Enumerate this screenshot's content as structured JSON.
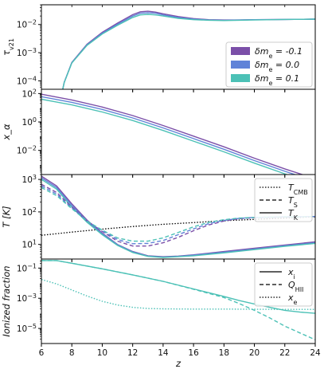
{
  "colors": {
    "purple": "#7b4fa8",
    "blue": "#6083d8",
    "teal": "#4cc1b6",
    "black": "#000000"
  },
  "chart_data": [
    {
      "type": "line",
      "ylabel": "τ_v21",
      "y_scale": "log",
      "xlim": [
        6,
        24
      ],
      "ylim_log10": [
        -4.3,
        -1.3
      ],
      "yticks": [
        {
          "base": "10",
          "exp": "−4",
          "log": -4
        },
        {
          "base": "10",
          "exp": "−3",
          "log": -3
        },
        {
          "base": "10",
          "exp": "−2",
          "log": -2
        }
      ],
      "legend": {
        "placement": "center-right",
        "entries": [
          {
            "label": "δm_e = -0.1",
            "color_key": "purple"
          },
          {
            "label": "δm_e = 0.0",
            "color_key": "blue"
          },
          {
            "label": "δm_e = 0.1",
            "color_key": "teal"
          }
        ]
      },
      "series": [
        {
          "name": "δm_e = -0.1",
          "color_key": "purple",
          "dash": "",
          "x": [
            7.4,
            7.5,
            8,
            9,
            10,
            11,
            12,
            12.5,
            13,
            13.5,
            14,
            15,
            16,
            17,
            18,
            19,
            20,
            22,
            24
          ],
          "log_y": [
            -4.3,
            -4.05,
            -3.35,
            -2.7,
            -2.28,
            -1.95,
            -1.65,
            -1.55,
            -1.53,
            -1.56,
            -1.62,
            -1.72,
            -1.79,
            -1.83,
            -1.84,
            -1.84,
            -1.83,
            -1.82,
            -1.81
          ]
        },
        {
          "name": "δm_e = 0.0",
          "color_key": "blue",
          "dash": "",
          "x": [
            7.4,
            7.5,
            8,
            9,
            10,
            11,
            12,
            12.5,
            13,
            13.5,
            14,
            15,
            16,
            17,
            18,
            19,
            20,
            22,
            24
          ],
          "log_y": [
            -4.3,
            -4.05,
            -3.36,
            -2.72,
            -2.31,
            -1.99,
            -1.7,
            -1.6,
            -1.58,
            -1.6,
            -1.66,
            -1.75,
            -1.81,
            -1.84,
            -1.85,
            -1.84,
            -1.83,
            -1.82,
            -1.81
          ]
        },
        {
          "name": "δm_e = 0.1",
          "color_key": "teal",
          "dash": "",
          "x": [
            7.4,
            7.5,
            8,
            9,
            10,
            11,
            12,
            12.5,
            13,
            13.5,
            14,
            15,
            16,
            17,
            18,
            19,
            20,
            22,
            24
          ],
          "log_y": [
            -4.3,
            -4.06,
            -3.37,
            -2.74,
            -2.34,
            -2.03,
            -1.75,
            -1.66,
            -1.64,
            -1.66,
            -1.7,
            -1.78,
            -1.83,
            -1.85,
            -1.86,
            -1.85,
            -1.84,
            -1.82,
            -1.81
          ]
        }
      ]
    },
    {
      "type": "line",
      "ylabel": "x_α",
      "y_scale": "log",
      "xlim": [
        6,
        24
      ],
      "ylim_log10": [
        -3.7,
        2.3
      ],
      "yticks": [
        {
          "base": "10",
          "exp": "−2",
          "log": -2
        },
        {
          "base": "10",
          "exp": "0",
          "log": 0
        },
        {
          "base": "10",
          "exp": "2",
          "log": 2
        }
      ],
      "series": [
        {
          "name": "δm_e = -0.1",
          "color_key": "purple",
          "dash": "",
          "x": [
            6,
            8,
            10,
            12,
            14,
            16,
            18,
            20,
            22,
            24
          ],
          "log_y": [
            1.95,
            1.55,
            1.05,
            0.45,
            -0.25,
            -1.0,
            -1.75,
            -2.55,
            -3.3,
            -4.0
          ]
        },
        {
          "name": "δm_e = 0.0",
          "color_key": "blue",
          "dash": "",
          "x": [
            6,
            8,
            10,
            12,
            14,
            16,
            18,
            20,
            22,
            24
          ],
          "log_y": [
            1.78,
            1.38,
            0.88,
            0.28,
            -0.42,
            -1.17,
            -1.92,
            -2.72,
            -3.47,
            -4.17
          ]
        },
        {
          "name": "δm_e = 0.1",
          "color_key": "teal",
          "dash": "",
          "x": [
            6,
            8,
            10,
            12,
            14,
            16,
            18,
            20,
            22,
            24
          ],
          "log_y": [
            1.6,
            1.2,
            0.7,
            0.1,
            -0.6,
            -1.35,
            -2.1,
            -2.9,
            -3.65,
            -4.35
          ]
        }
      ]
    },
    {
      "type": "line",
      "ylabel": "T [K]",
      "y_scale": "log",
      "xlim": [
        6,
        24
      ],
      "ylim_log10": [
        0.55,
        3.15
      ],
      "yticks": [
        {
          "base": "10",
          "exp": "1",
          "log": 1
        },
        {
          "base": "10",
          "exp": "2",
          "log": 2
        },
        {
          "base": "10",
          "exp": "3",
          "log": 3
        }
      ],
      "legend": {
        "placement": "top-right",
        "entries": [
          {
            "label": "T_CMB",
            "dash": "1.5 2"
          },
          {
            "label": "T_S",
            "dash": "5 3"
          },
          {
            "label": "T_K",
            "dash": ""
          }
        ]
      },
      "series": [
        {
          "name": "T_CMB",
          "color_key": "black",
          "dash": "1.5 2",
          "x": [
            6,
            8,
            10,
            12,
            14,
            16,
            18,
            20,
            22,
            24
          ],
          "log_y": [
            1.28,
            1.38,
            1.47,
            1.55,
            1.62,
            1.67,
            1.73,
            1.77,
            1.81,
            1.85
          ]
        },
        {
          "name": "T_K (δm_e = -0.1)",
          "color_key": "purple",
          "dash": "",
          "x": [
            6,
            7,
            8,
            9,
            10,
            11,
            12,
            13,
            14,
            15,
            16,
            18,
            20,
            22,
            24
          ],
          "log_y": [
            3.1,
            2.8,
            2.25,
            1.75,
            1.35,
            1.0,
            0.78,
            0.65,
            0.62,
            0.64,
            0.68,
            0.78,
            0.88,
            0.98,
            1.08
          ]
        },
        {
          "name": "T_K (δm_e = 0.0)",
          "color_key": "blue",
          "dash": "",
          "x": [
            6,
            7,
            8,
            9,
            10,
            11,
            12,
            13,
            14,
            15,
            16,
            18,
            20,
            22,
            24
          ],
          "log_y": [
            3.05,
            2.75,
            2.2,
            1.72,
            1.33,
            0.99,
            0.77,
            0.64,
            0.61,
            0.63,
            0.67,
            0.76,
            0.86,
            0.96,
            1.05
          ]
        },
        {
          "name": "T_K (δm_e = 0.1)",
          "color_key": "teal",
          "dash": "",
          "x": [
            6,
            7,
            8,
            9,
            10,
            11,
            12,
            13,
            14,
            15,
            16,
            18,
            20,
            22,
            24
          ],
          "log_y": [
            3.0,
            2.7,
            2.15,
            1.68,
            1.3,
            0.97,
            0.75,
            0.63,
            0.6,
            0.62,
            0.65,
            0.74,
            0.84,
            0.94,
            1.03
          ]
        },
        {
          "name": "T_S (δm_e = -0.1)",
          "color_key": "purple",
          "dash": "5 3",
          "x": [
            6,
            7,
            8,
            9,
            10,
            11,
            12,
            13,
            14,
            15,
            16,
            17,
            18,
            19,
            20,
            21,
            22,
            23,
            24
          ],
          "log_y": [
            2.85,
            2.6,
            2.15,
            1.72,
            1.4,
            1.1,
            0.95,
            0.95,
            1.05,
            1.22,
            1.42,
            1.6,
            1.72,
            1.79,
            1.82,
            1.83,
            1.84,
            1.85,
            1.86
          ]
        },
        {
          "name": "T_S (δm_e = 0.0)",
          "color_key": "blue",
          "dash": "5 3",
          "x": [
            6,
            7,
            8,
            9,
            10,
            11,
            12,
            13,
            14,
            15,
            16,
            17,
            18,
            19,
            20,
            21,
            22,
            23,
            24
          ],
          "log_y": [
            2.8,
            2.55,
            2.12,
            1.72,
            1.42,
            1.15,
            1.02,
            1.03,
            1.12,
            1.3,
            1.48,
            1.64,
            1.74,
            1.8,
            1.83,
            1.84,
            1.85,
            1.85,
            1.86
          ]
        },
        {
          "name": "T_S (δm_e = 0.1)",
          "color_key": "teal",
          "dash": "5 3",
          "x": [
            6,
            7,
            8,
            9,
            10,
            11,
            12,
            13,
            14,
            15,
            16,
            17,
            18,
            19,
            20,
            21,
            22,
            23,
            24
          ],
          "log_y": [
            2.75,
            2.5,
            2.1,
            1.72,
            1.44,
            1.2,
            1.1,
            1.1,
            1.2,
            1.37,
            1.54,
            1.68,
            1.76,
            1.81,
            1.83,
            1.84,
            1.85,
            1.85,
            1.86
          ]
        }
      ]
    },
    {
      "type": "line",
      "ylabel": "Ionized fraction",
      "xlabel": "z",
      "y_scale": "log",
      "xlim": [
        6,
        24
      ],
      "ylim_log10": [
        -6.0,
        -0.4
      ],
      "xticks": [
        6,
        8,
        10,
        12,
        14,
        16,
        18,
        20,
        22,
        24
      ],
      "yticks": [
        {
          "base": "10",
          "exp": "−5",
          "log": -5
        },
        {
          "base": "10",
          "exp": "−3",
          "log": -3
        },
        {
          "base": "10",
          "exp": "−1",
          "log": -1
        }
      ],
      "legend": {
        "placement": "top-right",
        "entries": [
          {
            "label": "x_i",
            "dash": ""
          },
          {
            "label": "Q_HII",
            "dash": "5 3"
          },
          {
            "label": "x_e",
            "dash": "1.5 2"
          }
        ]
      },
      "series": [
        {
          "name": "x_i",
          "color_key": "teal",
          "dash": "",
          "x": [
            6,
            7,
            8,
            10,
            12,
            14,
            16,
            18,
            19,
            20,
            21,
            22,
            23,
            24
          ],
          "log_y": [
            -0.5,
            -0.5,
            -0.68,
            -1.05,
            -1.45,
            -1.88,
            -2.38,
            -2.88,
            -3.15,
            -3.38,
            -3.6,
            -3.8,
            -3.92,
            -4.0
          ]
        },
        {
          "name": "Q_HII",
          "color_key": "teal",
          "dash": "5 3",
          "x": [
            6,
            7,
            8,
            10,
            12,
            14,
            16,
            18,
            19,
            20,
            21,
            22,
            23,
            24
          ],
          "log_y": [
            -0.5,
            -0.5,
            -0.68,
            -1.05,
            -1.45,
            -1.88,
            -2.4,
            -2.95,
            -3.35,
            -3.8,
            -4.3,
            -4.85,
            -5.3,
            -5.75
          ]
        },
        {
          "name": "x_e",
          "color_key": "teal",
          "dash": "1.5 2",
          "x": [
            6,
            7,
            8,
            9,
            10,
            11,
            12,
            13,
            14,
            16,
            18,
            20,
            22,
            24
          ],
          "log_y": [
            -1.75,
            -2.05,
            -2.45,
            -2.85,
            -3.2,
            -3.45,
            -3.6,
            -3.68,
            -3.7,
            -3.72,
            -3.72,
            -3.73,
            -3.74,
            -3.74
          ]
        }
      ]
    }
  ]
}
